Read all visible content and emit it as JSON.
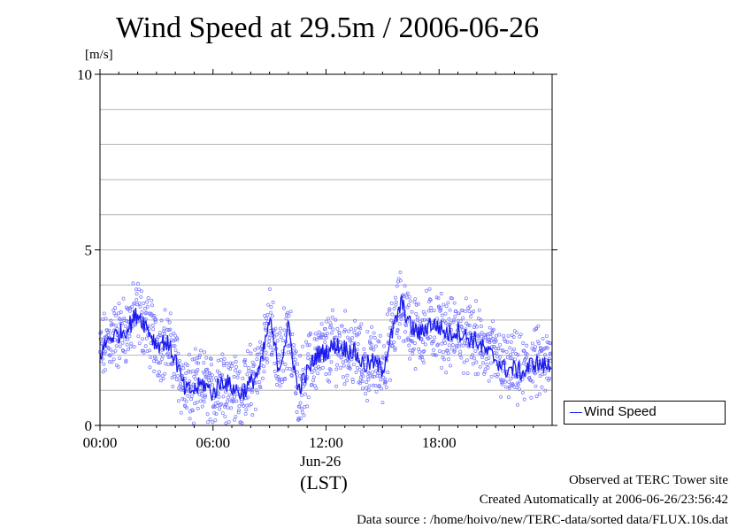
{
  "chart_data": {
    "type": "scatter",
    "title": "Wind Speed at 29.5m / 2006-06-26",
    "ylabel": "[m/s]",
    "xlabel": "(LST)",
    "x_date_label": "Jun-26",
    "ylim": [
      0,
      10
    ],
    "xlim_hours": [
      0,
      24
    ],
    "y_ticks": [
      "0",
      "5",
      "10"
    ],
    "y_tick_values": [
      0,
      5,
      10
    ],
    "x_ticks": [
      "00:00",
      "06:00",
      "12:00",
      "18:00"
    ],
    "x_tick_values": [
      0,
      6,
      12,
      18
    ],
    "grid": true,
    "legend_position": "right-bottom",
    "series": [
      {
        "name": "Wind Speed",
        "color": "#1a1aee",
        "marker_color": "#7070ff",
        "x_hours": [
          0.0,
          0.5,
          1.0,
          1.5,
          2.0,
          2.5,
          3.0,
          3.5,
          4.0,
          4.5,
          5.0,
          5.5,
          6.0,
          6.5,
          7.0,
          7.5,
          8.0,
          8.5,
          9.0,
          9.5,
          10.0,
          10.5,
          11.0,
          11.5,
          12.0,
          12.5,
          13.0,
          13.5,
          14.0,
          14.5,
          15.0,
          15.5,
          16.0,
          16.5,
          17.0,
          17.5,
          18.0,
          18.5,
          19.0,
          19.5,
          20.0,
          20.5,
          21.0,
          21.5,
          22.0,
          22.5,
          23.0,
          23.5
        ],
        "values": [
          2.0,
          2.5,
          2.6,
          2.8,
          3.2,
          2.8,
          2.3,
          2.4,
          1.9,
          1.0,
          1.0,
          1.2,
          0.9,
          1.3,
          1.1,
          0.9,
          1.2,
          1.6,
          3.0,
          1.6,
          2.8,
          1.0,
          1.5,
          2.0,
          2.1,
          2.3,
          2.2,
          2.1,
          1.7,
          1.8,
          1.6,
          2.6,
          3.5,
          2.8,
          2.6,
          2.9,
          2.8,
          2.6,
          2.7,
          2.5,
          2.4,
          2.1,
          1.9,
          1.6,
          1.6,
          1.5,
          1.8,
          1.7
        ]
      }
    ]
  },
  "footer": {
    "line1": "Observed at TERC Tower site",
    "line2": "Created Automatically at 2006-06-26/23:56:42",
    "line3": "Data source : /home/hoivo/new/TERC-data/sorted  data/FLUX.10s.dat"
  }
}
